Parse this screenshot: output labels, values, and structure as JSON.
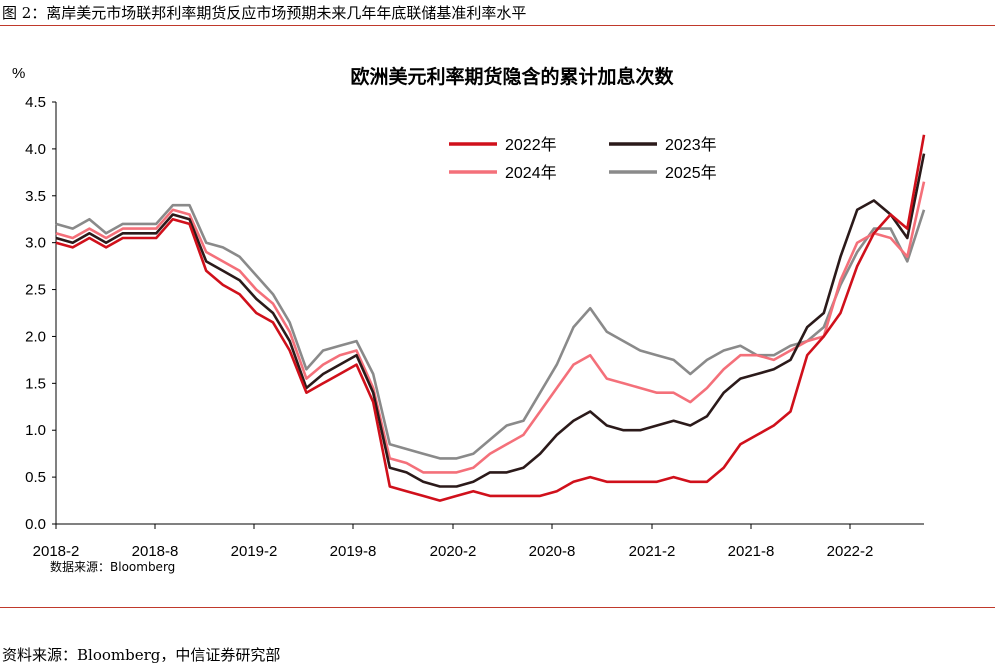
{
  "figure": {
    "caption": "图 2：离岸美元市场联邦利率期货反应市场预期未来几年年底联储基准利率水平",
    "source": "资料来源：Bloomberg，中信证券研究部"
  },
  "chart_data": {
    "type": "line",
    "title": "欧洲美元利率期货隐含的累计加息次数",
    "ylabel": "%",
    "xlabel": "",
    "note": "数据来源：Bloomberg",
    "ylim": [
      0.0,
      4.5
    ],
    "yticks": [
      "0.0",
      "0.5",
      "1.0",
      "1.5",
      "2.0",
      "2.5",
      "3.0",
      "3.5",
      "4.0",
      "4.5"
    ],
    "xticks": [
      "2018-2",
      "2018-8",
      "2019-2",
      "2019-8",
      "2020-2",
      "2020-8",
      "2021-2",
      "2021-8",
      "2022-2"
    ],
    "xlim": [
      0,
      52
    ],
    "grid": false,
    "legend_position": "top-right",
    "colors": {
      "2022年": "#d0101b",
      "2023年": "#2b1a1a",
      "2024年": "#f4707a",
      "2025年": "#8a8a8a"
    },
    "x": [
      0,
      1,
      2,
      3,
      4,
      5,
      6,
      7,
      8,
      9,
      10,
      11,
      12,
      13,
      14,
      15,
      16,
      17,
      18,
      19,
      20,
      21,
      22,
      23,
      24,
      25,
      26,
      27,
      28,
      29,
      30,
      31,
      32,
      33,
      34,
      35,
      36,
      37,
      38,
      39,
      40,
      41,
      42,
      43,
      44,
      45,
      46,
      47,
      48,
      49,
      50,
      51,
      52
    ],
    "series": [
      {
        "name": "2022年",
        "values": [
          3.0,
          2.95,
          3.05,
          2.95,
          3.05,
          3.05,
          3.05,
          3.25,
          3.2,
          2.7,
          2.55,
          2.45,
          2.25,
          2.15,
          1.85,
          1.4,
          1.5,
          1.6,
          1.7,
          1.3,
          0.4,
          0.35,
          0.3,
          0.25,
          0.3,
          0.35,
          0.3,
          0.3,
          0.3,
          0.3,
          0.35,
          0.45,
          0.5,
          0.45,
          0.45,
          0.45,
          0.45,
          0.5,
          0.45,
          0.45,
          0.6,
          0.85,
          0.95,
          1.05,
          1.2,
          1.8,
          2.0,
          2.25,
          2.75,
          3.1,
          3.3,
          3.15,
          4.15
        ]
      },
      {
        "name": "2023年",
        "values": [
          3.05,
          3.0,
          3.1,
          3.0,
          3.1,
          3.1,
          3.1,
          3.3,
          3.25,
          2.8,
          2.7,
          2.6,
          2.4,
          2.25,
          1.95,
          1.45,
          1.6,
          1.7,
          1.8,
          1.4,
          0.6,
          0.55,
          0.45,
          0.4,
          0.4,
          0.45,
          0.55,
          0.55,
          0.6,
          0.75,
          0.95,
          1.1,
          1.2,
          1.05,
          1.0,
          1.0,
          1.05,
          1.1,
          1.05,
          1.15,
          1.4,
          1.55,
          1.6,
          1.65,
          1.75,
          2.1,
          2.25,
          2.85,
          3.35,
          3.45,
          3.3,
          3.05,
          3.95
        ]
      },
      {
        "name": "2024年",
        "values": [
          3.1,
          3.05,
          3.15,
          3.05,
          3.15,
          3.15,
          3.15,
          3.35,
          3.3,
          2.9,
          2.8,
          2.7,
          2.5,
          2.35,
          2.05,
          1.55,
          1.7,
          1.8,
          1.85,
          1.45,
          0.7,
          0.65,
          0.55,
          0.55,
          0.55,
          0.6,
          0.75,
          0.85,
          0.95,
          1.2,
          1.45,
          1.7,
          1.8,
          1.55,
          1.5,
          1.45,
          1.4,
          1.4,
          1.3,
          1.45,
          1.65,
          1.8,
          1.8,
          1.75,
          1.85,
          1.95,
          2.0,
          2.6,
          3.0,
          3.1,
          3.05,
          2.85,
          3.65
        ]
      },
      {
        "name": "2025年",
        "values": [
          3.2,
          3.15,
          3.25,
          3.1,
          3.2,
          3.2,
          3.2,
          3.4,
          3.4,
          3.0,
          2.95,
          2.85,
          2.65,
          2.45,
          2.15,
          1.65,
          1.85,
          1.9,
          1.95,
          1.6,
          0.85,
          0.8,
          0.75,
          0.7,
          0.7,
          0.75,
          0.9,
          1.05,
          1.1,
          1.4,
          1.7,
          2.1,
          2.3,
          2.05,
          1.95,
          1.85,
          1.8,
          1.75,
          1.6,
          1.75,
          1.85,
          1.9,
          1.8,
          1.8,
          1.9,
          1.95,
          2.1,
          2.55,
          2.9,
          3.15,
          3.15,
          2.8,
          3.35
        ]
      }
    ]
  }
}
